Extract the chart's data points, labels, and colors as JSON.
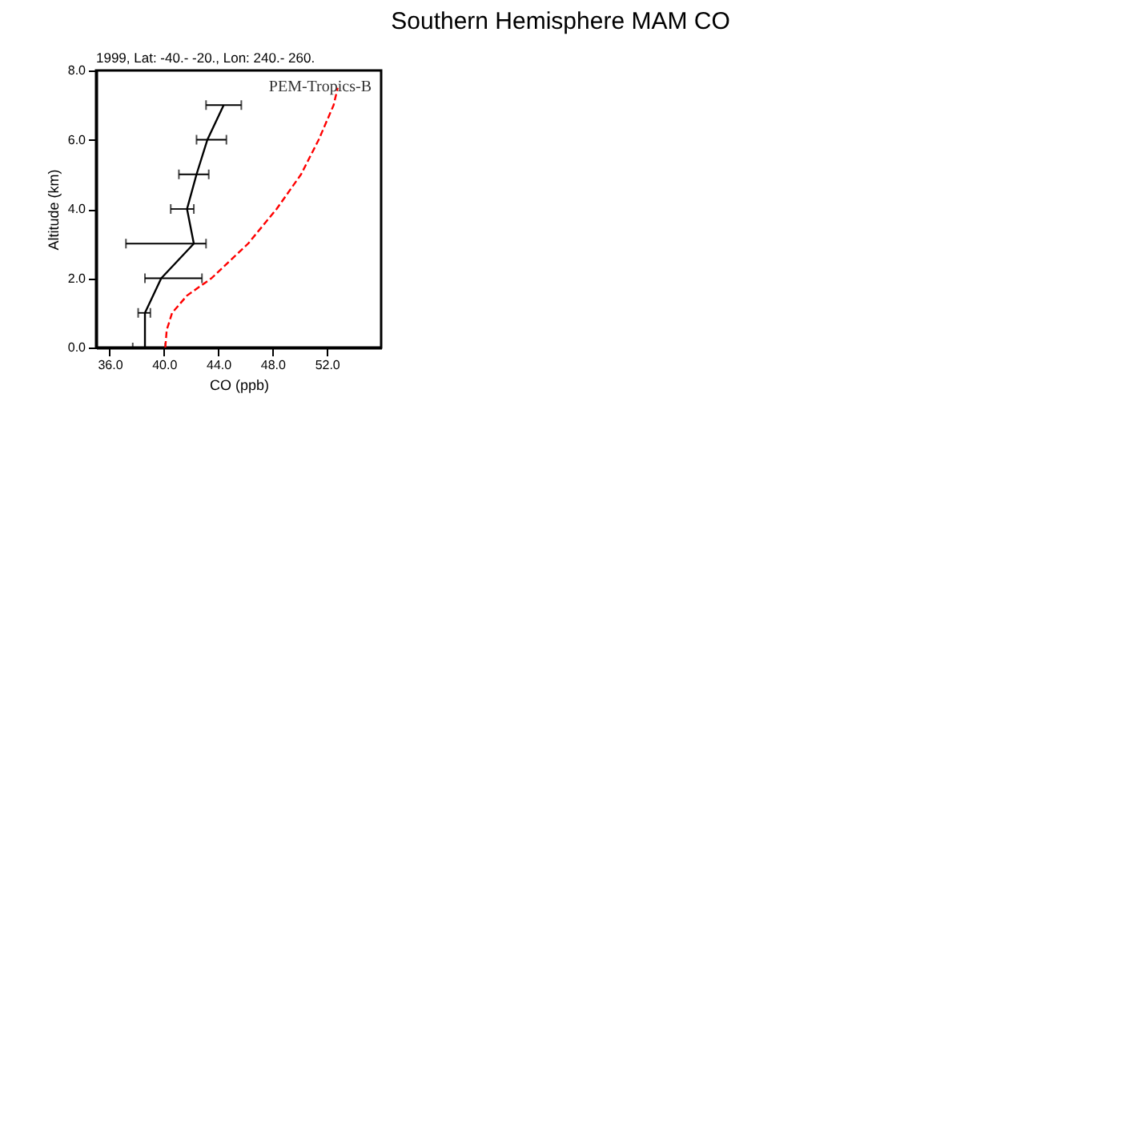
{
  "chart_data": {
    "type": "line",
    "title": "Southern Hemisphere MAM CO",
    "subtitle": "1999, Lat: -40.- -20., Lon: 240.- 260.",
    "xlabel": "CO (ppb)",
    "ylabel": "Altitude (km)",
    "annotations": [
      "PEM-Tropics-B"
    ],
    "xlim": [
      35,
      56
    ],
    "xticks": [
      {
        "value": 36,
        "label": "36.0"
      },
      {
        "value": 40,
        "label": "40.0"
      },
      {
        "value": 44,
        "label": "44.0"
      },
      {
        "value": 48,
        "label": "48.0"
      },
      {
        "value": 52,
        "label": "52.0"
      }
    ],
    "ylim": [
      0,
      8
    ],
    "yticks": [
      {
        "value": 0,
        "label": "0.0"
      },
      {
        "value": 2,
        "label": "2.0"
      },
      {
        "value": 4,
        "label": "4.0"
      },
      {
        "value": 6,
        "label": "6.0"
      },
      {
        "value": 8,
        "label": "8.0"
      }
    ],
    "grid": false,
    "legend": false,
    "marker": "none",
    "series": [
      {
        "color": "#000000",
        "line_style": "solid",
        "x": [
          38.6,
          38.6,
          39.8,
          42.2,
          41.7,
          42.4,
          43.2,
          44.4
        ],
        "values": [
          0,
          1,
          2,
          3,
          4,
          5,
          6,
          7
        ],
        "xerrors": [
          [
            37.7,
            40.1
          ],
          [
            38.1,
            39.0
          ],
          [
            38.6,
            42.8
          ],
          [
            37.2,
            43.1
          ],
          [
            40.5,
            42.2
          ],
          [
            41.1,
            43.3
          ],
          [
            42.4,
            44.6
          ],
          [
            43.1,
            45.7
          ]
        ]
      },
      {
        "color": "#ff0000",
        "line_style": "dashed",
        "x": [
          40.1,
          40.2,
          40.6,
          41.7,
          43.5,
          46.2,
          48.3,
          50.1,
          51.4,
          52.5,
          52.8
        ],
        "values": [
          0,
          0.5,
          1,
          1.5,
          2,
          3,
          4,
          5,
          6,
          7,
          7.5
        ]
      }
    ]
  }
}
